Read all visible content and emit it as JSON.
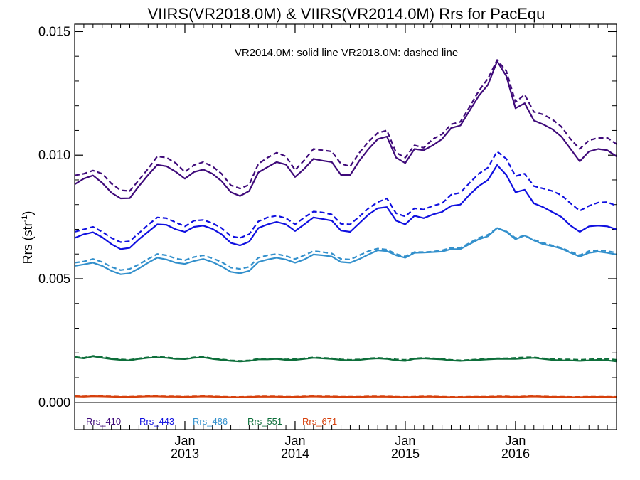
{
  "chart_data": {
    "type": "line",
    "title": "VIIRS(VR2018.0M) & VIIRS(VR2014.0M)  Rrs for PacEqu",
    "ylabel": "Rrs (str",
    "ylabel_sup": "-1",
    "ylabel_close": ")",
    "ylim": [
      -0.0011,
      0.0153
    ],
    "yticks": [
      {
        "value": 0.0,
        "label": "0.000"
      },
      {
        "value": 0.005,
        "label": "0.005"
      },
      {
        "value": 0.01,
        "label": "0.010"
      },
      {
        "value": 0.015,
        "label": "0.015"
      }
    ],
    "xlim": [
      "2012-01",
      "2016-12"
    ],
    "xticks": [
      {
        "value": "2013-01",
        "label": "Jan",
        "year": "2013"
      },
      {
        "value": "2014-01",
        "label": "Jan",
        "year": "2014"
      },
      {
        "value": "2015-01",
        "label": "Jan",
        "year": "2015"
      },
      {
        "value": "2016-01",
        "label": "Jan",
        "year": "2016"
      }
    ],
    "annotation": "VR2014.0M: solid line   VR2018.0M: dashed line",
    "x": [
      "2012-01",
      "2012-02",
      "2012-03",
      "2012-04",
      "2012-05",
      "2012-06",
      "2012-07",
      "2012-08",
      "2012-09",
      "2012-10",
      "2012-11",
      "2012-12",
      "2013-01",
      "2013-02",
      "2013-03",
      "2013-04",
      "2013-05",
      "2013-06",
      "2013-07",
      "2013-08",
      "2013-09",
      "2013-10",
      "2013-11",
      "2013-12",
      "2014-01",
      "2014-02",
      "2014-03",
      "2014-04",
      "2014-05",
      "2014-06",
      "2014-07",
      "2014-08",
      "2014-09",
      "2014-10",
      "2014-11",
      "2014-12",
      "2015-01",
      "2015-02",
      "2015-03",
      "2015-04",
      "2015-05",
      "2015-06",
      "2015-07",
      "2015-08",
      "2015-09",
      "2015-10",
      "2015-11",
      "2015-12",
      "2016-01",
      "2016-02",
      "2016-03",
      "2016-04",
      "2016-05",
      "2016-06",
      "2016-07",
      "2016-08",
      "2016-09",
      "2016-10",
      "2016-11",
      "2016-12"
    ],
    "series": [
      {
        "name": "Rrs_410",
        "color": "#3f0a7a",
        "solid": [
          0.00882,
          0.00905,
          0.00918,
          0.00888,
          0.00848,
          0.00825,
          0.00826,
          0.00875,
          0.0092,
          0.00961,
          0.00955,
          0.00933,
          0.00905,
          0.00932,
          0.00942,
          0.00925,
          0.00895,
          0.0085,
          0.00835,
          0.00855,
          0.0093,
          0.00952,
          0.00972,
          0.00962,
          0.00912,
          0.00945,
          0.00985,
          0.00978,
          0.00972,
          0.0092,
          0.0092,
          0.00978,
          0.01025,
          0.01065,
          0.01075,
          0.0099,
          0.00968,
          0.01025,
          0.0102,
          0.0104,
          0.01065,
          0.0111,
          0.0112,
          0.0118,
          0.0124,
          0.01285,
          0.0138,
          0.0132,
          0.0119,
          0.0121,
          0.0114,
          0.01125,
          0.01105,
          0.01075,
          0.01025,
          0.00975,
          0.01015,
          0.01025,
          0.0102,
          0.00995
        ],
        "dashed": [
          0.00918,
          0.00925,
          0.00938,
          0.00925,
          0.00885,
          0.00858,
          0.00855,
          0.009,
          0.00945,
          0.00995,
          0.0099,
          0.00968,
          0.00932,
          0.0096,
          0.00972,
          0.00955,
          0.00925,
          0.00878,
          0.00865,
          0.0088,
          0.00965,
          0.0099,
          0.0101,
          0.00995,
          0.0094,
          0.0098,
          0.01025,
          0.0102,
          0.01015,
          0.00965,
          0.00955,
          0.0101,
          0.01055,
          0.0109,
          0.011,
          0.0101,
          0.0099,
          0.0104,
          0.0103,
          0.01065,
          0.01085,
          0.01125,
          0.01135,
          0.01195,
          0.0126,
          0.0131,
          0.01385,
          0.0134,
          0.01215,
          0.01245,
          0.01175,
          0.01165,
          0.01145,
          0.01115,
          0.01065,
          0.01025,
          0.0106,
          0.0107,
          0.0107,
          0.01045
        ]
      },
      {
        "name": "Rrs_443",
        "color": "#1010e0",
        "solid": [
          0.00665,
          0.0068,
          0.00688,
          0.00668,
          0.0064,
          0.0062,
          0.00625,
          0.0066,
          0.0069,
          0.0072,
          0.00718,
          0.007,
          0.0069,
          0.0071,
          0.00715,
          0.00702,
          0.0068,
          0.00645,
          0.00635,
          0.0065,
          0.00705,
          0.0072,
          0.0073,
          0.0072,
          0.00693,
          0.0072,
          0.00748,
          0.00742,
          0.00735,
          0.00695,
          0.0069,
          0.00725,
          0.0076,
          0.00785,
          0.0079,
          0.00735,
          0.0072,
          0.00755,
          0.00745,
          0.0076,
          0.0077,
          0.00795,
          0.008,
          0.0084,
          0.00875,
          0.009,
          0.0096,
          0.0092,
          0.0085,
          0.0086,
          0.00805,
          0.0079,
          0.0077,
          0.0075,
          0.00715,
          0.0069,
          0.00712,
          0.00715,
          0.00712,
          0.007
        ],
        "dashed": [
          0.0069,
          0.007,
          0.0071,
          0.0069,
          0.00665,
          0.00648,
          0.00652,
          0.00685,
          0.00718,
          0.00748,
          0.00745,
          0.00728,
          0.00712,
          0.00735,
          0.00738,
          0.00725,
          0.00705,
          0.00672,
          0.00665,
          0.0068,
          0.00732,
          0.00748,
          0.00755,
          0.00745,
          0.0072,
          0.00748,
          0.00772,
          0.00768,
          0.0076,
          0.00722,
          0.0072,
          0.00752,
          0.00785,
          0.0081,
          0.00825,
          0.00765,
          0.00752,
          0.00785,
          0.0078,
          0.00795,
          0.00805,
          0.0084,
          0.00848,
          0.00888,
          0.00925,
          0.0095,
          0.01015,
          0.00985,
          0.00915,
          0.00925,
          0.00875,
          0.00865,
          0.00855,
          0.00838,
          0.00805,
          0.00775,
          0.00795,
          0.00808,
          0.0081,
          0.00795
        ]
      },
      {
        "name": "Rrs_486",
        "color": "#3390cc",
        "solid": [
          0.00552,
          0.00558,
          0.00565,
          0.00552,
          0.00532,
          0.00518,
          0.00522,
          0.00542,
          0.00565,
          0.00585,
          0.00578,
          0.00565,
          0.0056,
          0.00572,
          0.0058,
          0.00568,
          0.0055,
          0.00528,
          0.00522,
          0.00532,
          0.00568,
          0.00578,
          0.00585,
          0.00578,
          0.00565,
          0.00578,
          0.00598,
          0.00595,
          0.0059,
          0.00568,
          0.00565,
          0.0058,
          0.00598,
          0.00615,
          0.00612,
          0.00595,
          0.00585,
          0.00605,
          0.00606,
          0.00608,
          0.0061,
          0.0062,
          0.0062,
          0.0064,
          0.0066,
          0.00672,
          0.00705,
          0.0069,
          0.0066,
          0.00675,
          0.00655,
          0.0064,
          0.00632,
          0.00622,
          0.00605,
          0.0059,
          0.00605,
          0.0061,
          0.00605,
          0.00598
        ],
        "dashed": [
          0.00565,
          0.0057,
          0.0058,
          0.00568,
          0.00548,
          0.00535,
          0.0054,
          0.00558,
          0.0058,
          0.006,
          0.00595,
          0.00582,
          0.00575,
          0.00588,
          0.00595,
          0.00583,
          0.00568,
          0.00545,
          0.0054,
          0.00548,
          0.00585,
          0.00595,
          0.006,
          0.00592,
          0.0058,
          0.00595,
          0.00612,
          0.00608,
          0.00602,
          0.0058,
          0.00578,
          0.00595,
          0.00612,
          0.00622,
          0.00618,
          0.006,
          0.0059,
          0.00608,
          0.00608,
          0.0061,
          0.00615,
          0.00625,
          0.00625,
          0.00645,
          0.00665,
          0.00678,
          0.00705,
          0.00692,
          0.00665,
          0.00675,
          0.00658,
          0.00645,
          0.00635,
          0.00625,
          0.0061,
          0.00595,
          0.00612,
          0.00615,
          0.00612,
          0.00605
        ]
      },
      {
        "name": "Rrs_551",
        "color": "#0d6e3a",
        "solid": [
          0.00182,
          0.00178,
          0.00186,
          0.0018,
          0.00175,
          0.00172,
          0.0017,
          0.00176,
          0.0018,
          0.00182,
          0.0018,
          0.00176,
          0.00175,
          0.0018,
          0.00182,
          0.00176,
          0.00172,
          0.00168,
          0.00166,
          0.00168,
          0.00174,
          0.00174,
          0.00176,
          0.00172,
          0.00172,
          0.00176,
          0.0018,
          0.00178,
          0.00176,
          0.00172,
          0.0017,
          0.00172,
          0.00176,
          0.00178,
          0.00176,
          0.0017,
          0.00168,
          0.00176,
          0.00178,
          0.00176,
          0.00174,
          0.0017,
          0.00168,
          0.0017,
          0.00172,
          0.00174,
          0.00176,
          0.00176,
          0.00176,
          0.00178,
          0.0018,
          0.00176,
          0.00172,
          0.0017,
          0.0017,
          0.00168,
          0.0017,
          0.00172,
          0.0017,
          0.00166
        ],
        "dashed": [
          0.00184,
          0.0018,
          0.00188,
          0.00184,
          0.00178,
          0.00174,
          0.00172,
          0.00178,
          0.00182,
          0.00184,
          0.00182,
          0.00178,
          0.00177,
          0.00182,
          0.00184,
          0.00178,
          0.00174,
          0.0017,
          0.00168,
          0.0017,
          0.00176,
          0.00176,
          0.00178,
          0.00174,
          0.00175,
          0.00178,
          0.00182,
          0.0018,
          0.00178,
          0.00174,
          0.00172,
          0.00174,
          0.00178,
          0.0018,
          0.00178,
          0.00174,
          0.00172,
          0.00178,
          0.0018,
          0.00178,
          0.00176,
          0.00172,
          0.0017,
          0.00172,
          0.00174,
          0.00176,
          0.00178,
          0.00178,
          0.0018,
          0.00182,
          0.00182,
          0.00178,
          0.00176,
          0.00174,
          0.00174,
          0.00172,
          0.00174,
          0.00176,
          0.00176,
          0.00172
        ]
      },
      {
        "name": "Rrs_671",
        "color": "#d6400c",
        "solid": [
          0.00024,
          0.00023,
          0.00025,
          0.00024,
          0.00023,
          0.00022,
          0.00022,
          0.00023,
          0.00024,
          0.00024,
          0.00023,
          0.00023,
          0.00022,
          0.00023,
          0.00024,
          0.00023,
          0.00022,
          0.00021,
          0.00021,
          0.00022,
          0.00023,
          0.00023,
          0.00023,
          0.00022,
          0.00022,
          0.00023,
          0.00024,
          0.00023,
          0.00023,
          0.00022,
          0.00022,
          0.00022,
          0.00023,
          0.00023,
          0.00023,
          0.00022,
          0.00021,
          0.00022,
          0.00023,
          0.00023,
          0.00022,
          0.00021,
          0.00021,
          0.00022,
          0.00022,
          0.00022,
          0.00023,
          0.00023,
          0.00022,
          0.00023,
          0.00024,
          0.00023,
          0.00022,
          0.00022,
          0.00021,
          0.00021,
          0.00022,
          0.00022,
          0.00022,
          0.00021
        ],
        "dashed": [
          0.00025,
          0.00024,
          0.00026,
          0.00025,
          0.00024,
          0.00023,
          0.00023,
          0.00024,
          0.00025,
          0.00025,
          0.00024,
          0.00024,
          0.00023,
          0.00024,
          0.00025,
          0.00024,
          0.00023,
          0.00022,
          0.00022,
          0.00023,
          0.00024,
          0.00024,
          0.00024,
          0.00023,
          0.00023,
          0.00024,
          0.00025,
          0.00024,
          0.00024,
          0.00023,
          0.00023,
          0.00023,
          0.00024,
          0.00024,
          0.00024,
          0.00023,
          0.00022,
          0.00023,
          0.00024,
          0.00024,
          0.00023,
          0.00022,
          0.00022,
          0.00023,
          0.00023,
          0.00023,
          0.00024,
          0.00024,
          0.00023,
          0.00024,
          0.00025,
          0.00024,
          0.00023,
          0.00023,
          0.00022,
          0.00022,
          0.00023,
          0.00023,
          0.00023,
          0.00022
        ]
      }
    ]
  }
}
